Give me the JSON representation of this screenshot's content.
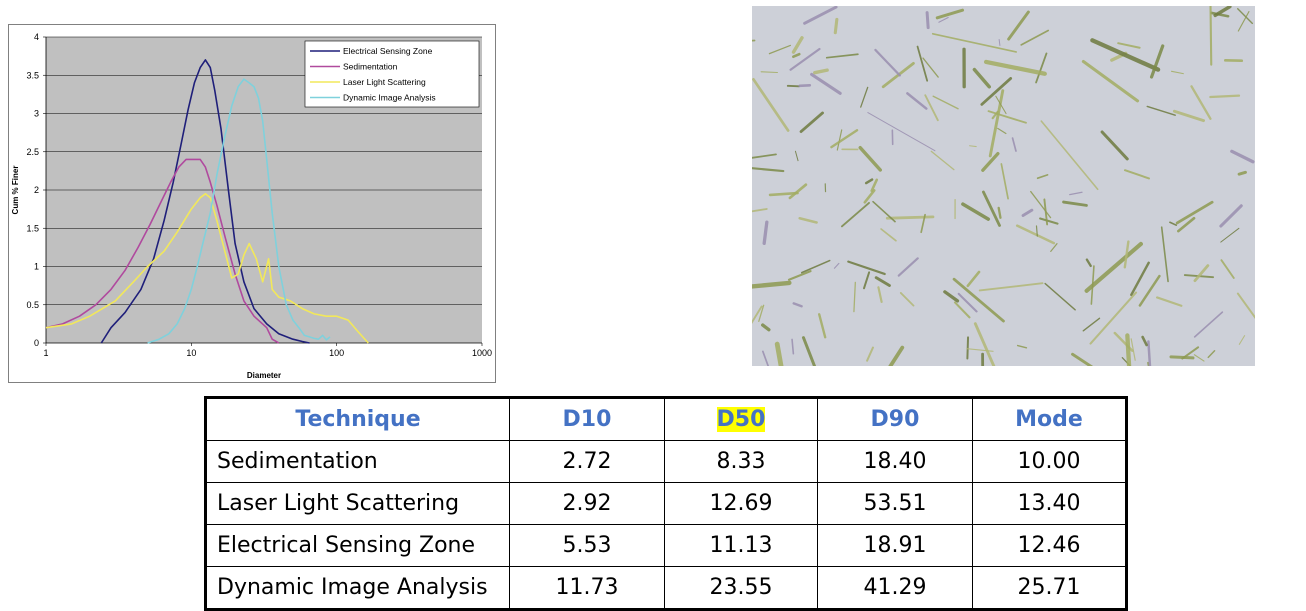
{
  "chart_data": {
    "type": "line",
    "xlabel": "Diameter",
    "ylabel": "Cum % Finer",
    "xscale": "log",
    "xlim": [
      1,
      1000
    ],
    "ylim": [
      0,
      4
    ],
    "x_ticks": [
      "1",
      "10",
      "100",
      "1000"
    ],
    "y_ticks": [
      "0",
      "0.5",
      "1",
      "1.5",
      "2",
      "2.5",
      "3",
      "3.5",
      "4"
    ],
    "grid": "horizontal",
    "legend_position": "top-right",
    "series": [
      {
        "name": "Electrical Sensing Zone",
        "color": "#1f1f7a",
        "x": [
          2.4,
          2.8,
          3.5,
          4.5,
          5.5,
          6.5,
          7.5,
          8.5,
          9.5,
          10.5,
          11.5,
          12.5,
          13.5,
          14.5,
          16,
          18,
          20,
          23,
          27,
          33,
          40,
          50,
          58,
          65
        ],
        "y": [
          0,
          0.2,
          0.4,
          0.7,
          1.1,
          1.6,
          2.1,
          2.6,
          3.05,
          3.4,
          3.6,
          3.7,
          3.6,
          3.3,
          2.8,
          2.0,
          1.3,
          0.8,
          0.45,
          0.25,
          0.12,
          0.05,
          0.02,
          0
        ]
      },
      {
        "name": "Sedimentation",
        "color": "#b04a9e",
        "x": [
          1,
          1.3,
          1.7,
          2.2,
          2.8,
          3.5,
          4.3,
          5.2,
          6.2,
          7.2,
          8.2,
          9.2,
          10.2,
          11.5,
          12.5,
          13.5,
          15,
          17,
          20,
          23,
          27,
          33,
          36,
          40
        ],
        "y": [
          0.2,
          0.25,
          0.35,
          0.5,
          0.7,
          0.95,
          1.25,
          1.55,
          1.85,
          2.1,
          2.3,
          2.4,
          2.4,
          2.4,
          2.3,
          2.1,
          1.8,
          1.4,
          0.9,
          0.55,
          0.35,
          0.2,
          0.05,
          0
        ]
      },
      {
        "name": "Laser Light Scattering",
        "color": "#f2e85a",
        "x": [
          1,
          1.5,
          2,
          3,
          4,
          5,
          6.5,
          8,
          10,
          11.5,
          12.5,
          13.5,
          15,
          17,
          19,
          21,
          23,
          25,
          28,
          31,
          34,
          36,
          40,
          48,
          58,
          70,
          85,
          100,
          120,
          140,
          165
        ],
        "y": [
          0.2,
          0.25,
          0.35,
          0.55,
          0.8,
          1.0,
          1.2,
          1.45,
          1.75,
          1.9,
          1.95,
          1.9,
          1.6,
          1.2,
          0.85,
          0.9,
          1.15,
          1.3,
          1.1,
          0.8,
          1.1,
          0.7,
          0.6,
          0.55,
          0.45,
          0.38,
          0.35,
          0.35,
          0.3,
          0.15,
          0
        ]
      },
      {
        "name": "Dynamic Image Analysis",
        "color": "#7fd1dc",
        "x": [
          5,
          6,
          7,
          8,
          9,
          10,
          11,
          12,
          13.5,
          15,
          17,
          19,
          21,
          23,
          25,
          27,
          29,
          31,
          33,
          36,
          40,
          45,
          50,
          55,
          60,
          65,
          70,
          75,
          80,
          85,
          90
        ],
        "y": [
          0,
          0.05,
          0.12,
          0.25,
          0.45,
          0.7,
          1.0,
          1.3,
          1.7,
          2.2,
          2.7,
          3.1,
          3.35,
          3.45,
          3.4,
          3.35,
          3.2,
          2.9,
          2.4,
          1.7,
          1.0,
          0.5,
          0.3,
          0.2,
          0.1,
          0.08,
          0.06,
          0.05,
          0.1,
          0.04,
          0.08
        ]
      }
    ]
  },
  "image": {
    "subject": "microscope-image"
  },
  "table": {
    "headers": [
      "Technique",
      "D10",
      "D50",
      "D90",
      "Mode"
    ],
    "highlight_column": 2,
    "highlight_color": "#ffff00",
    "header_color": "#4472c4",
    "rows": [
      [
        "Sedimentation",
        "2.72",
        "8.33",
        "18.40",
        "10.00"
      ],
      [
        "Laser Light Scattering",
        "2.92",
        "12.69",
        "53.51",
        "13.40"
      ],
      [
        "Electrical Sensing Zone",
        "5.53",
        "11.13",
        "18.91",
        "12.46"
      ],
      [
        "Dynamic Image Analysis",
        "11.73",
        "23.55",
        "41.29",
        "25.71"
      ]
    ]
  }
}
